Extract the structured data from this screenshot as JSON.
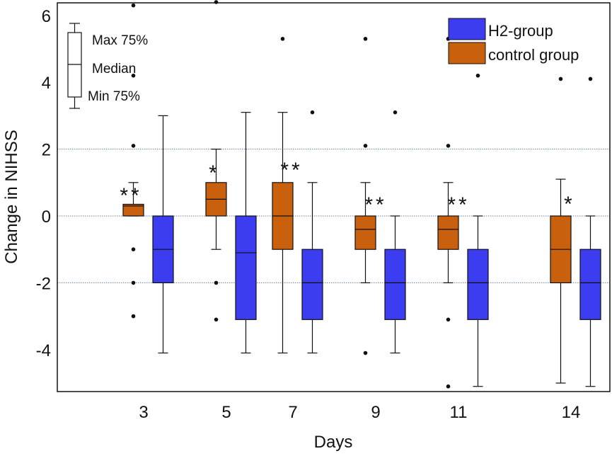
{
  "chart_data": {
    "type": "box",
    "title": "",
    "xlabel": "Days",
    "ylabel": "Change in NIHSS",
    "ylim": [
      -5.3,
      6.6
    ],
    "yticks": [
      "6",
      "4",
      "2",
      "0",
      "-2",
      "-4"
    ],
    "categories": [
      "3",
      "5",
      "7",
      "9",
      "11",
      "14"
    ],
    "grid": "dotted horizontal lines at -2, 0, 2",
    "legend_position": "top-right",
    "series": [
      {
        "name": "control group",
        "color": "#c8600e",
        "boxes": [
          {
            "day": "3",
            "min": 0,
            "q1": 0,
            "median": 0.3,
            "q3": 0.35,
            "max": 1,
            "outliers": [
              6.3,
              2.1,
              4.2,
              -1,
              -2,
              -3
            ]
          },
          {
            "day": "5",
            "min": -1,
            "q1": 0,
            "median": 0.5,
            "q3": 1,
            "max": 2,
            "outliers": [
              6.4,
              -2,
              -3.1
            ]
          },
          {
            "day": "7",
            "min": -4.1,
            "q1": -1,
            "median": 0,
            "q3": 1,
            "max": 3.1,
            "outliers": [
              5.3
            ]
          },
          {
            "day": "9",
            "min": -2,
            "q1": -1,
            "median": -0.4,
            "q3": 0,
            "max": 1,
            "outliers": [
              5.3,
              2.1,
              -4.1
            ]
          },
          {
            "day": "11",
            "min": -2,
            "q1": -1,
            "median": -0.4,
            "q3": 0,
            "max": 1,
            "outliers": [
              5.3,
              2.1,
              -3.1,
              -5.1
            ]
          },
          {
            "day": "14",
            "min": -5,
            "q1": -2,
            "median": -1,
            "q3": 0,
            "max": 1.1,
            "outliers": [
              4.1
            ]
          }
        ]
      },
      {
        "name": "H2-group",
        "color": "#3c3cf0",
        "boxes": [
          {
            "day": "3",
            "min": -4.1,
            "q1": -2,
            "median": -1,
            "q3": 0,
            "max": 3,
            "outliers": []
          },
          {
            "day": "5",
            "min": -4.1,
            "q1": -3.1,
            "median": -1.1,
            "q3": 0,
            "max": 3.1,
            "outliers": []
          },
          {
            "day": "7",
            "min": -4.1,
            "q1": -3.1,
            "median": -2,
            "q3": -1,
            "max": 1,
            "outliers": [
              3.1
            ]
          },
          {
            "day": "9",
            "min": -4.1,
            "q1": -3.1,
            "median": -2,
            "q3": -1,
            "max": 0,
            "outliers": [
              3.1
            ]
          },
          {
            "day": "11",
            "min": -5.1,
            "q1": -3.1,
            "median": -2,
            "q3": -1,
            "max": 0,
            "outliers": [
              4.2
            ]
          },
          {
            "day": "14",
            "min": -5.1,
            "q1": -3.1,
            "median": -2,
            "q3": -1,
            "max": 0,
            "outliers": [
              4.1
            ]
          }
        ]
      }
    ],
    "significance": [
      {
        "day": "3",
        "label": "**"
      },
      {
        "day": "5",
        "label": "*"
      },
      {
        "day": "7",
        "label": "**"
      },
      {
        "day": "9",
        "label": "**"
      },
      {
        "day": "11",
        "label": "**"
      },
      {
        "day": "14",
        "label": "*"
      }
    ],
    "box_key": {
      "max_label": "Max 75%",
      "median_label": "Median",
      "min_label": "Min 75%"
    },
    "legend": [
      {
        "label": "H2-group",
        "color": "#3c3cf0"
      },
      {
        "label": "control group",
        "color": "#c8600e"
      }
    ]
  }
}
